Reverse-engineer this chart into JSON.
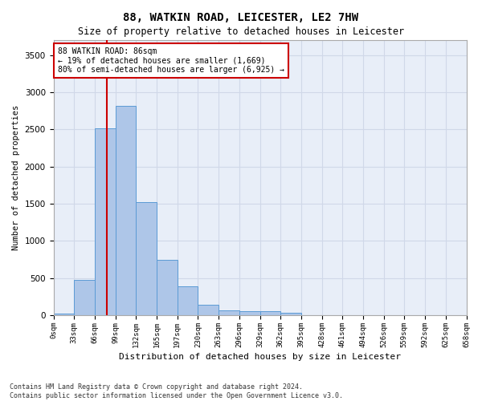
{
  "title": "88, WATKIN ROAD, LEICESTER, LE2 7HW",
  "subtitle": "Size of property relative to detached houses in Leicester",
  "xlabel": "Distribution of detached houses by size in Leicester",
  "ylabel": "Number of detached properties",
  "bar_values": [
    20,
    480,
    2510,
    2820,
    1520,
    750,
    385,
    140,
    70,
    55,
    55,
    30,
    0,
    0,
    0,
    0,
    0,
    0,
    0,
    0
  ],
  "bin_labels": [
    "0sqm",
    "33sqm",
    "66sqm",
    "99sqm",
    "132sqm",
    "165sqm",
    "197sqm",
    "230sqm",
    "263sqm",
    "296sqm",
    "329sqm",
    "362sqm",
    "395sqm",
    "428sqm",
    "461sqm",
    "494sqm",
    "526sqm",
    "559sqm",
    "592sqm",
    "625sqm",
    "658sqm"
  ],
  "bar_color": "#aec6e8",
  "bar_edge_color": "#5b9bd5",
  "vline_x": 2.606,
  "vline_color": "#cc0000",
  "annotation_text": "88 WATKIN ROAD: 86sqm\n← 19% of detached houses are smaller (1,669)\n80% of semi-detached houses are larger (6,925) →",
  "annotation_box_color": "#ffffff",
  "annotation_box_edge": "#cc0000",
  "ylim": [
    0,
    3700
  ],
  "yticks": [
    0,
    500,
    1000,
    1500,
    2000,
    2500,
    3000,
    3500
  ],
  "grid_color": "#d0d8e8",
  "background_color": "#e8eef8",
  "footer_line1": "Contains HM Land Registry data © Crown copyright and database right 2024.",
  "footer_line2": "Contains public sector information licensed under the Open Government Licence v3.0."
}
